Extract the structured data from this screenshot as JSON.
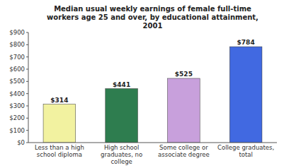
{
  "chart_data": {
    "type": "bar",
    "title": "Median usual weekly earnings of female full-time\nworkers age 25 and over, by educational attainment,\n2001",
    "categories": [
      "Less than a high\nschool diploma",
      "High school\ngraduates, no\ncollege",
      "Some college or\nassociate degree",
      "College graduates,\ntotal"
    ],
    "values": [
      314,
      441,
      525,
      784
    ],
    "value_labels": [
      "$314",
      "$441",
      "$525",
      "$784"
    ],
    "data_labels": true,
    "colors": [
      "#f2f2a0",
      "#2e7d4f",
      "#c8a0dc",
      "#4169e1"
    ],
    "ylim": [
      0,
      900
    ],
    "yticks": [
      {
        "value": 0,
        "label": "$0"
      },
      {
        "value": 100,
        "label": "$100"
      },
      {
        "value": 200,
        "label": "$200"
      },
      {
        "value": 300,
        "label": "$300"
      },
      {
        "value": 400,
        "label": "$400"
      },
      {
        "value": 500,
        "label": "$500"
      },
      {
        "value": 600,
        "label": "$600"
      },
      {
        "value": 700,
        "label": "$700"
      },
      {
        "value": 800,
        "label": "$800"
      },
      {
        "value": 900,
        "label": "$900"
      }
    ],
    "grid": false
  }
}
